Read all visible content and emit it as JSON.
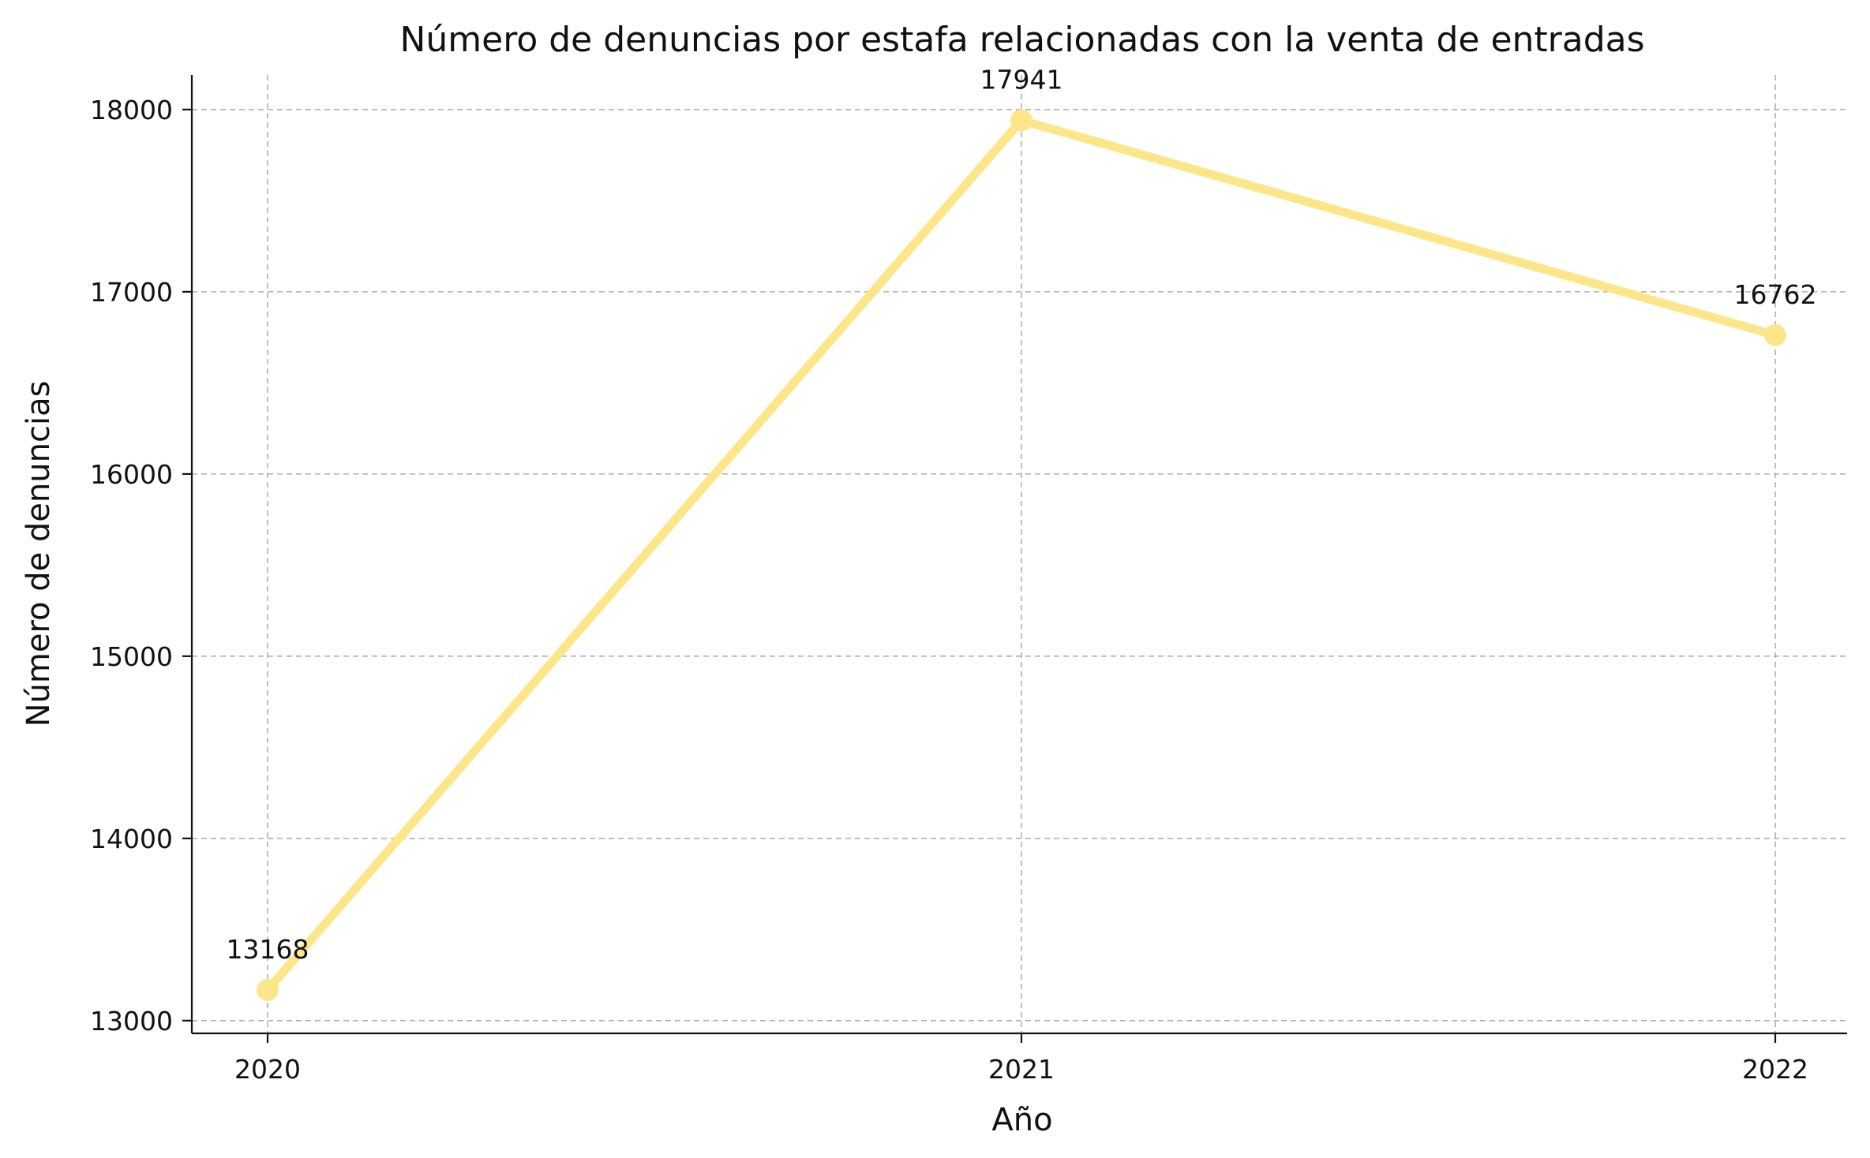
{
  "chart_data": {
    "type": "line",
    "title": "Número de denuncias por estafa relacionadas con la venta de entradas",
    "xlabel": "Año",
    "ylabel": "Número de denuncias",
    "x": [
      "2020",
      "2021",
      "2022"
    ],
    "series": [
      {
        "values": [
          13168,
          17941,
          16762
        ],
        "color": "#fde68a"
      }
    ],
    "data_labels": [
      "13168",
      "17941",
      "16762"
    ],
    "yticks": [
      13000,
      14000,
      15000,
      16000,
      17000,
      18000
    ],
    "ylim": [
      12930,
      18190
    ],
    "grid": true,
    "legend": "none"
  }
}
